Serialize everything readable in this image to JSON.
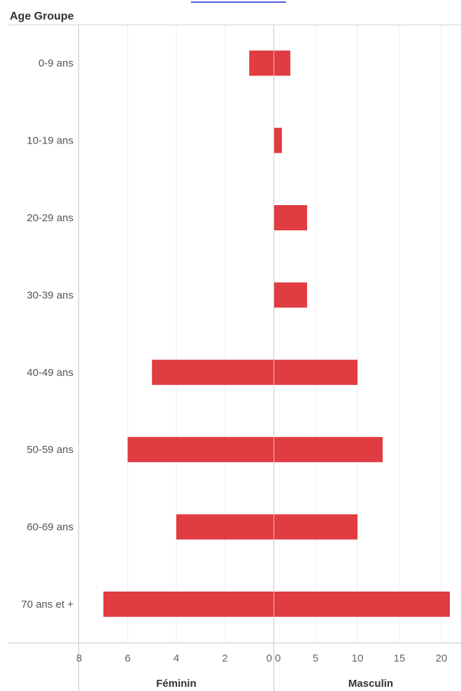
{
  "chart_data": {
    "type": "bar",
    "header_title": "Age Groupe",
    "categories": [
      "0-9 ans",
      "10-19 ans",
      "20-29 ans",
      "30-39 ans",
      "40-49 ans",
      "50-59 ans",
      "60-69 ans",
      "70 ans et +"
    ],
    "series": [
      {
        "name": "Féminin",
        "values": [
          1,
          0,
          0,
          0,
          5,
          6,
          4,
          7
        ]
      },
      {
        "name": "Masculin",
        "values": [
          2,
          1,
          4,
          4,
          10,
          13,
          10,
          21
        ]
      }
    ],
    "left_axis": {
      "label": "Féminin",
      "ticks": [
        "8",
        "6",
        "4",
        "2",
        "0"
      ],
      "tick_values": [
        8,
        6,
        4,
        2,
        0
      ],
      "range": [
        0,
        8
      ],
      "reversed": true
    },
    "right_axis": {
      "label": "Masculin",
      "ticks": [
        "0",
        "5",
        "10",
        "15",
        "20"
      ],
      "tick_values": [
        0,
        5,
        10,
        15,
        20
      ],
      "range": [
        0,
        22
      ]
    },
    "grid": true,
    "bar_color": "#e03c41"
  }
}
